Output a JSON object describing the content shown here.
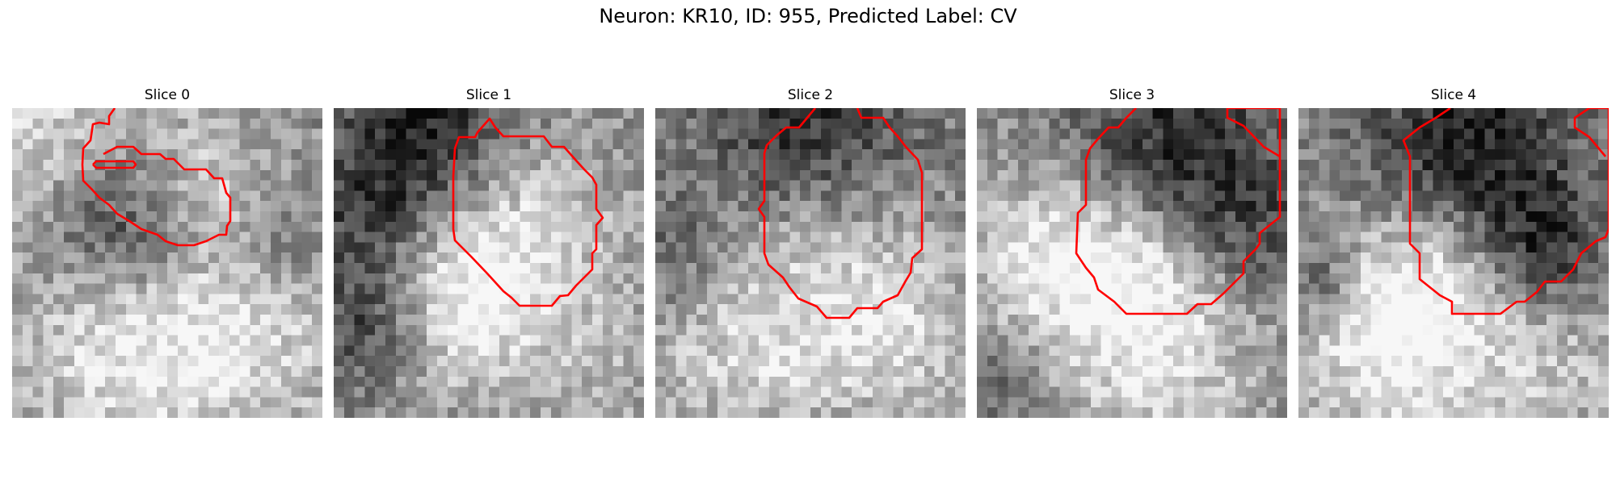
{
  "title": "Neuron: KR10, ID: 955, Predicted Label: CV",
  "outline_color": "#ff0000",
  "panels": [
    {
      "title": "Slice 0"
    },
    {
      "title": "Slice 1"
    },
    {
      "title": "Slice 2"
    },
    {
      "title": "Slice 3"
    },
    {
      "title": "Slice 4"
    }
  ]
}
